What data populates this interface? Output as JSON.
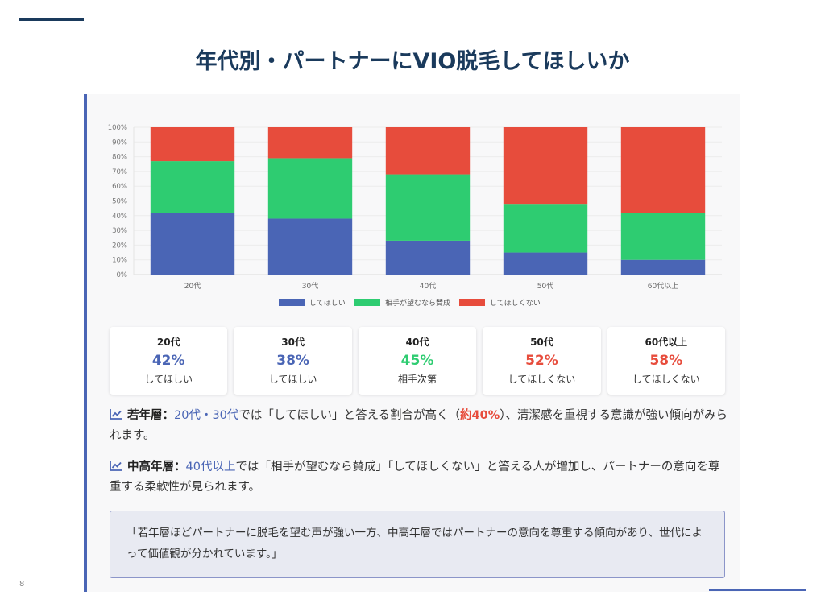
{
  "slide": {
    "title": "年代別・パートナーにVIO脱毛してほしいか",
    "page_number": "8"
  },
  "colors": {
    "want": "#4a65b5",
    "depends": "#2ecc71",
    "not_want": "#e74c3c",
    "title": "#1a3a5c"
  },
  "chart_data": {
    "type": "bar",
    "stacked": true,
    "title": "",
    "xlabel": "",
    "ylabel": "",
    "ylim": [
      0,
      100
    ],
    "y_ticks": [
      "0%",
      "10%",
      "20%",
      "30%",
      "40%",
      "50%",
      "60%",
      "70%",
      "80%",
      "90%",
      "100%"
    ],
    "categories": [
      "20代",
      "30代",
      "40代",
      "50代",
      "60代以上"
    ],
    "series": [
      {
        "name": "してほしい",
        "color": "#4a65b5",
        "values": [
          42,
          38,
          23,
          15,
          10
        ]
      },
      {
        "name": "相手が望むなら賛成",
        "color": "#2ecc71",
        "values": [
          35,
          41,
          45,
          33,
          32
        ]
      },
      {
        "name": "してほしくない",
        "color": "#e74c3c",
        "values": [
          23,
          21,
          32,
          52,
          58
        ]
      }
    ],
    "legend_position": "bottom",
    "grid": true
  },
  "cards": [
    {
      "age": "20代",
      "value": "42%",
      "label": "してほしい",
      "color": "#4a65b5"
    },
    {
      "age": "30代",
      "value": "38%",
      "label": "してほしい",
      "color": "#4a65b5"
    },
    {
      "age": "40代",
      "value": "45%",
      "label": "相手次第",
      "color": "#2ecc71"
    },
    {
      "age": "50代",
      "value": "52%",
      "label": "してほしくない",
      "color": "#e74c3c"
    },
    {
      "age": "60代以上",
      "value": "58%",
      "label": "してほしくない",
      "color": "#e74c3c"
    }
  ],
  "insights": {
    "young": {
      "lead": "若年層：",
      "highlight": "20代・30代",
      "text1": "では「してほしい」と答える割合が高く（",
      "percent": "約40%",
      "text2": "）、清潔感を重視する意識が強い傾向がみられます。"
    },
    "older": {
      "lead": "中高年層：",
      "highlight": "40代以上",
      "text1": "では「相手が望むなら賛成」「してほしくない」と答える人が増加し、パートナーの意向を尊重する柔軟性が見られます。"
    }
  },
  "quote": "「若年層ほどパートナーに脱毛を望む声が強い一方、中高年層ではパートナーの意向を尊重する傾向があり、世代によって価値観が分かれています。」"
}
